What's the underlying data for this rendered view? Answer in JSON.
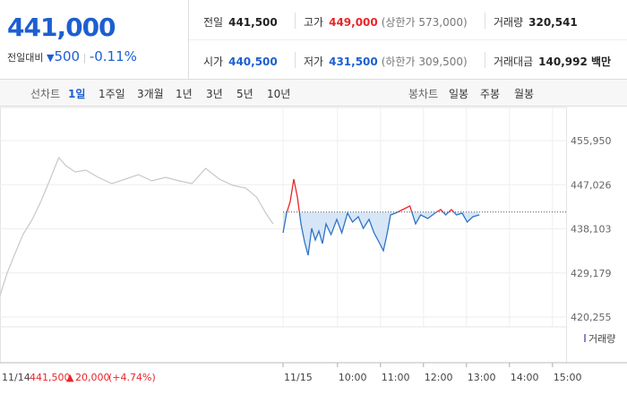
{
  "header": {
    "price": "441,000",
    "change_label": "전일대비",
    "change": "500",
    "change_rate": "-0.11%",
    "stats": [
      {
        "label": "전일",
        "value": "441,500"
      },
      {
        "label": "고가",
        "value": "449,000",
        "note": "(상한가 573,000)"
      },
      {
        "label": "거래량",
        "value": "320,541"
      },
      {
        "label": "시가",
        "value": "440,500"
      },
      {
        "label": "저가",
        "value": "431,500",
        "note": "(하한가 309,500)"
      },
      {
        "label": "거래대금",
        "value": "140,992 백만"
      }
    ]
  },
  "tabs": {
    "line_label": "선차트",
    "line_periods": [
      "1일",
      "1주일",
      "3개월",
      "1년",
      "3년",
      "5년",
      "10년"
    ],
    "candle_label": "봉차트",
    "candle_periods": [
      "일봉",
      "주봉",
      "월봉"
    ]
  },
  "footer": {
    "date": "11/14",
    "close": "441,500",
    "change": "20,000",
    "rate": "(+4.74%)"
  },
  "chart_data": {
    "type": "line",
    "volume_label": "거래량",
    "baseline": 441500,
    "up_color": "#e8262a",
    "down_color": "#2f74c8",
    "fill_color": "#d6e6f7",
    "xlim": [
      -411,
      379
    ],
    "ylim": [
      418262,
      462656
    ],
    "xticks": [
      {
        "value": -16,
        "label": "11/15"
      },
      {
        "value": 60,
        "label": "10:00"
      },
      {
        "value": 120,
        "label": "11:00"
      },
      {
        "value": 180,
        "label": "12:00"
      },
      {
        "value": 240,
        "label": "13:00"
      },
      {
        "value": 300,
        "label": "14:00"
      },
      {
        "value": 360,
        "label": "15:00"
      }
    ],
    "yticks": [
      {
        "value": 455950,
        "label": "455,950"
      },
      {
        "value": 447026,
        "label": "447,026"
      },
      {
        "value": 438103,
        "label": "438,103"
      },
      {
        "value": 429179,
        "label": "429,179"
      },
      {
        "value": 420255,
        "label": "420,255"
      }
    ],
    "grid": true,
    "series": [
      {
        "color": "#c8c8c8",
        "x": [
          -411,
          -401,
          -391,
          -379,
          -366,
          -354,
          -341,
          -329,
          -319,
          -306,
          -291,
          -274,
          -255,
          -236,
          -218,
          -199,
          -180,
          -161,
          -143,
          -124,
          -105,
          -86,
          -68,
          -53,
          -40,
          -30
        ],
        "values": [
          424600,
          429179,
          432760,
          436930,
          440010,
          443630,
          448160,
          452510,
          450880,
          449610,
          449970,
          448520,
          447250,
          448160,
          449070,
          447800,
          448520,
          447800,
          447250,
          450330,
          448160,
          446890,
          446350,
          444540,
          441270,
          439100
        ]
      },
      {
        "color": "#2f74c8",
        "x": [
          -16,
          -11,
          -6,
          -1,
          4,
          9,
          14,
          19,
          24,
          29,
          34,
          39,
          44,
          51,
          59,
          66,
          74,
          81,
          89,
          96,
          104,
          111,
          119,
          124,
          129,
          134,
          141,
          151,
          161,
          169,
          176,
          186,
          196,
          204,
          211,
          219,
          226,
          234,
          241,
          249,
          258
        ],
        "values": [
          437290,
          441270,
          443630,
          448160,
          444540,
          439100,
          435480,
          432760,
          438190,
          435840,
          437650,
          435110,
          439100,
          436930,
          440010,
          437290,
          441270,
          439460,
          440550,
          438190,
          440010,
          437290,
          435110,
          433660,
          436930,
          440910,
          441270,
          442000,
          442720,
          439100,
          440910,
          440190,
          441270,
          442000,
          440910,
          442000,
          440910,
          441270,
          439460,
          440550,
          440910
        ]
      }
    ]
  }
}
